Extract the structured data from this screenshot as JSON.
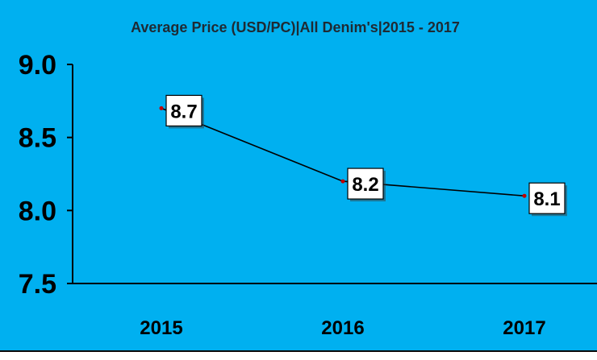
{
  "chart_data": {
    "type": "line",
    "title": "Average Price (USD/PC)|All Denim's|2015 - 2017",
    "xlabel": "",
    "ylabel": "",
    "categories": [
      "2015",
      "2016",
      "2017"
    ],
    "series": [
      {
        "values": [
          8.7,
          8.2,
          8.1
        ]
      }
    ],
    "data_labels": [
      "8.7",
      "8.2",
      "8.1"
    ],
    "yticks": [
      9.0,
      8.5,
      8.0,
      7.5
    ],
    "ytick_labels": [
      "9.0",
      "8.5",
      "8.0",
      "7.5"
    ],
    "ylim": [
      7.5,
      9.0
    ],
    "grid": false,
    "legend": "none",
    "colors": {
      "background": "#00b0f0",
      "line": "#000000",
      "marker": "#c00000",
      "label_box": "#ffffff"
    }
  }
}
